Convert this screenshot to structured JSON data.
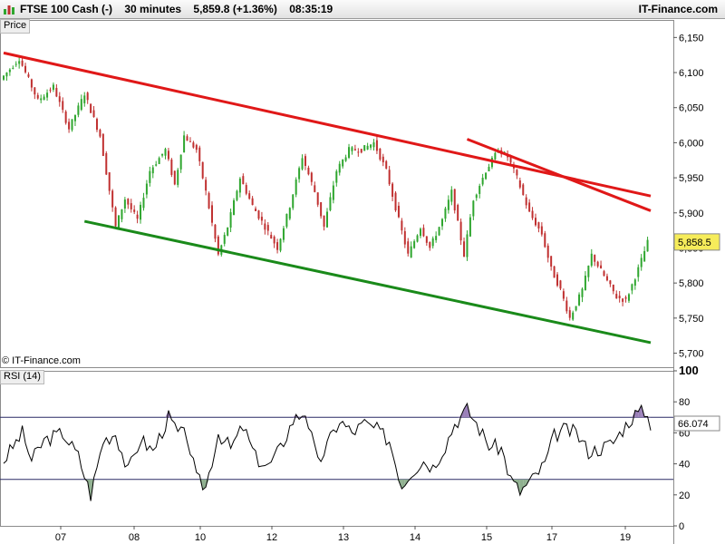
{
  "header": {
    "instrument": "FTSE 100 Cash (-)",
    "timeframe": "30 minutes",
    "last": "5,859.8",
    "change": "(+1.36%)",
    "time": "08:35:19",
    "brand": "IT-Finance.com"
  },
  "price_panel": {
    "label": "Price",
    "copyright": "© IT-Finance.com"
  },
  "rsi_panel": {
    "label": "RSI (14)"
  },
  "colors": {
    "up": "#2fa62f",
    "down": "#c03030",
    "resistance": "#e01818",
    "support": "#1a8a1a",
    "grid": "#d8d8d8",
    "rsi_line": "#000000",
    "rsi_overbought_fill": "#9a7fb8",
    "rsi_oversold_fill": "#8fb08f"
  },
  "chart_data": [
    {
      "type": "candlestick",
      "x_ticks": [
        "07",
        "08",
        "10",
        "12",
        "13",
        "14",
        "15",
        "17",
        "19"
      ],
      "y_ticks": [
        "6,150",
        "6,100",
        "6,050",
        "6,000",
        "5,950",
        "5,900",
        "5,850",
        "5,800",
        "5,750",
        "5,700"
      ],
      "ylim": [
        5680,
        6175
      ],
      "last_value_label": "5,858.5",
      "last_value": 5858.5,
      "price_path": [
        [
          0,
          6090
        ],
        [
          6,
          6120
        ],
        [
          12,
          6060
        ],
        [
          17,
          6080
        ],
        [
          22,
          6020
        ],
        [
          27,
          6070
        ],
        [
          32,
          6010
        ],
        [
          37,
          5880
        ],
        [
          40,
          5920
        ],
        [
          44,
          5890
        ],
        [
          48,
          5960
        ],
        [
          53,
          5990
        ],
        [
          56,
          5940
        ],
        [
          59,
          6010
        ],
        [
          63,
          5990
        ],
        [
          66,
          5930
        ],
        [
          70,
          5840
        ],
        [
          73,
          5880
        ],
        [
          77,
          5950
        ],
        [
          81,
          5910
        ],
        [
          85,
          5880
        ],
        [
          89,
          5850
        ],
        [
          93,
          5910
        ],
        [
          97,
          5980
        ],
        [
          101,
          5930
        ],
        [
          104,
          5880
        ],
        [
          108,
          5960
        ],
        [
          112,
          5990
        ],
        [
          116,
          5990
        ],
        [
          120,
          6000
        ],
        [
          124,
          5960
        ],
        [
          128,
          5890
        ],
        [
          131,
          5840
        ],
        [
          135,
          5880
        ],
        [
          138,
          5850
        ],
        [
          142,
          5890
        ],
        [
          145,
          5930
        ],
        [
          149,
          5840
        ],
        [
          152,
          5920
        ],
        [
          156,
          5960
        ],
        [
          160,
          5990
        ],
        [
          163,
          5980
        ],
        [
          166,
          5950
        ],
        [
          170,
          5900
        ],
        [
          174,
          5870
        ],
        [
          177,
          5820
        ],
        [
          180,
          5790
        ],
        [
          183,
          5750
        ],
        [
          187,
          5790
        ],
        [
          190,
          5840
        ],
        [
          194,
          5810
        ],
        [
          198,
          5780
        ],
        [
          201,
          5775
        ],
        [
          205,
          5820
        ],
        [
          208,
          5858
        ]
      ],
      "trendlines": [
        {
          "role": "resistance",
          "from": [
            0,
            6128
          ],
          "to": [
            208,
            5924
          ]
        },
        {
          "role": "resistance",
          "from": [
            149,
            6005
          ],
          "to": [
            208,
            5903
          ]
        },
        {
          "role": "support",
          "from": [
            26,
            5888
          ],
          "to": [
            208,
            5715
          ]
        }
      ]
    },
    {
      "type": "line",
      "name": "RSI (14)",
      "y_ticks": [
        "100",
        "80",
        "60",
        "40",
        "20",
        "0"
      ],
      "ylim": [
        0,
        100
      ],
      "overbought": 70,
      "oversold": 30,
      "last_value_label": "66.074",
      "last_value": 66.074,
      "rsi_path": [
        [
          0,
          42
        ],
        [
          6,
          60
        ],
        [
          9,
          42
        ],
        [
          13,
          55
        ],
        [
          19,
          60
        ],
        [
          24,
          45
        ],
        [
          28,
          20
        ],
        [
          32,
          55
        ],
        [
          36,
          60
        ],
        [
          40,
          35
        ],
        [
          44,
          56
        ],
        [
          48,
          48
        ],
        [
          53,
          70
        ],
        [
          56,
          60
        ],
        [
          59,
          58
        ],
        [
          62,
          30
        ],
        [
          65,
          25
        ],
        [
          69,
          60
        ],
        [
          73,
          50
        ],
        [
          77,
          64
        ],
        [
          81,
          44
        ],
        [
          85,
          38
        ],
        [
          89,
          50
        ],
        [
          93,
          68
        ],
        [
          97,
          74
        ],
        [
          101,
          40
        ],
        [
          104,
          52
        ],
        [
          108,
          68
        ],
        [
          112,
          60
        ],
        [
          116,
          66
        ],
        [
          120,
          62
        ],
        [
          124,
          55
        ],
        [
          128,
          26
        ],
        [
          131,
          35
        ],
        [
          135,
          42
        ],
        [
          138,
          38
        ],
        [
          142,
          52
        ],
        [
          145,
          66
        ],
        [
          149,
          75
        ],
        [
          152,
          66
        ],
        [
          156,
          52
        ],
        [
          160,
          50
        ],
        [
          163,
          30
        ],
        [
          166,
          22
        ],
        [
          170,
          30
        ],
        [
          174,
          40
        ],
        [
          177,
          58
        ],
        [
          180,
          62
        ],
        [
          184,
          60
        ],
        [
          188,
          48
        ],
        [
          192,
          50
        ],
        [
          196,
          54
        ],
        [
          200,
          65
        ],
        [
          203,
          72
        ],
        [
          206,
          74
        ],
        [
          208,
          66
        ]
      ]
    }
  ]
}
